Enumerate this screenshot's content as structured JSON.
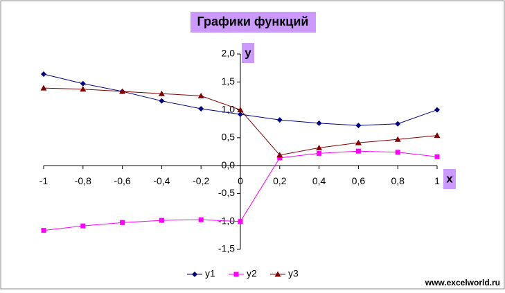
{
  "chart_data": {
    "type": "line",
    "title": "Графики функций",
    "x_label": "x",
    "y_label": "у",
    "x": [
      -1,
      -0.8,
      -0.6,
      -0.4,
      -0.2,
      0,
      0.2,
      0.4,
      0.6,
      0.8,
      1
    ],
    "series": [
      {
        "name": "y1",
        "color": "#000080",
        "marker": "diamond",
        "values": [
          1.64,
          1.47,
          1.33,
          1.16,
          1.02,
          0.92,
          0.82,
          0.76,
          0.72,
          0.75,
          1.0
        ]
      },
      {
        "name": "y2",
        "color": "#ff00ff",
        "marker": "square",
        "values": [
          -1.16,
          -1.08,
          -1.02,
          -0.98,
          -0.97,
          -1.0,
          0.14,
          0.22,
          0.26,
          0.24,
          0.16
        ]
      },
      {
        "name": "y3",
        "color": "#800000",
        "marker": "triangle",
        "values": [
          1.39,
          1.37,
          1.33,
          1.29,
          1.25,
          1.0,
          0.19,
          0.32,
          0.41,
          0.47,
          0.54
        ]
      }
    ],
    "xlim": [
      -1,
      1
    ],
    "ylim": [
      -1.5,
      2
    ],
    "xticks": [
      -1,
      {
        "value": -0.8,
        "label": "-0,8"
      },
      {
        "value": -0.6,
        "label": "-0,6"
      },
      {
        "value": -0.4,
        "label": "-0,4"
      },
      {
        "value": -0.2,
        "label": "-0,2"
      },
      0,
      {
        "value": 0.2,
        "label": "0,2"
      },
      {
        "value": 0.4,
        "label": "0,4"
      },
      {
        "value": 0.6,
        "label": "0,6"
      },
      {
        "value": 0.8,
        "label": "0,8"
      },
      1
    ],
    "yticks": [
      {
        "value": -1.5,
        "label": "-1,5"
      },
      {
        "value": -1,
        "label": "-1,0"
      },
      {
        "value": -0.5,
        "label": "-0,5"
      },
      {
        "value": 0,
        "label": "0,0"
      },
      {
        "value": 0.5,
        "label": "0,5"
      },
      {
        "value": 1,
        "label": "1,0"
      },
      {
        "value": 1.5,
        "label": "1,5"
      },
      {
        "value": 2,
        "label": "2,0"
      }
    ],
    "legend": "bottom",
    "grid": false,
    "watermark": "www.excelworld.ru"
  }
}
